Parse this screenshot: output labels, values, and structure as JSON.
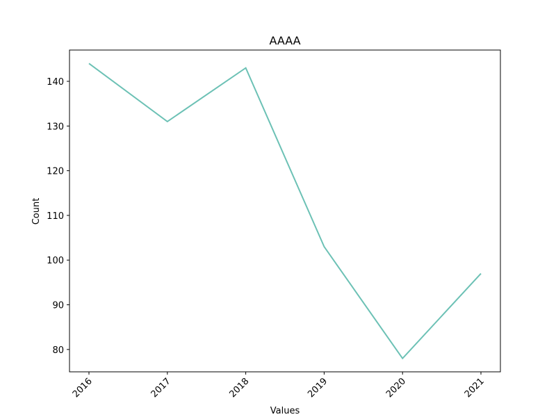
{
  "chart_data": {
    "type": "line",
    "title": "AAAA",
    "xlabel": "Values",
    "ylabel": "Count",
    "categories": [
      "2016",
      "2017",
      "2018",
      "2019",
      "2020",
      "2021"
    ],
    "series": [
      {
        "values": [
          144,
          131,
          143,
          103,
          78,
          97
        ],
        "color": "#6cc1b5"
      }
    ],
    "ylim": [
      75,
      147
    ],
    "yticks": [
      80,
      90,
      100,
      110,
      120,
      130,
      140
    ],
    "grid": false,
    "legend": "none"
  }
}
